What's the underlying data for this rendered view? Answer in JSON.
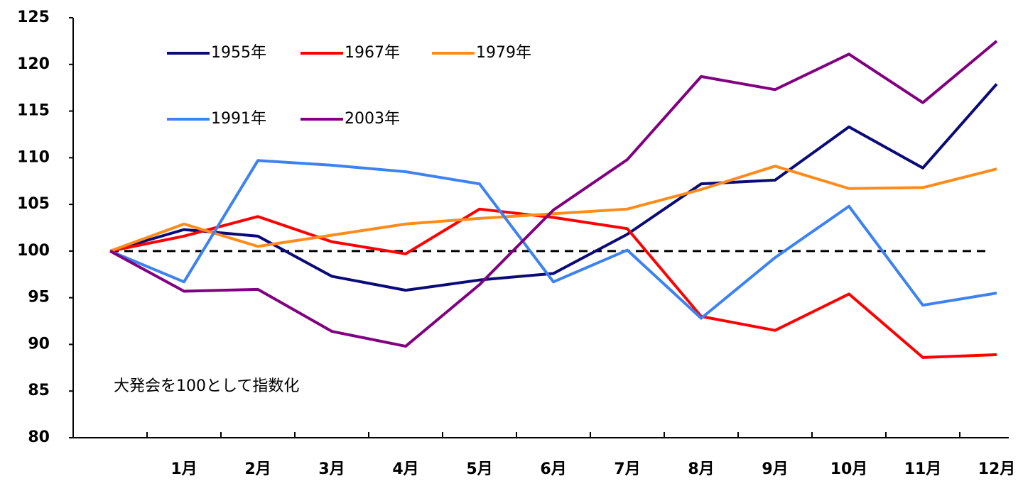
{
  "chart_data": {
    "type": "line",
    "annotation": "大発会を100として指数化",
    "categories": [
      null,
      "1月",
      "2月",
      "3月",
      "4月",
      "5月",
      "6月",
      "7月",
      "8月",
      "9月",
      "10月",
      "11月",
      "12月"
    ],
    "series": [
      {
        "name": "1955年",
        "color": "#0a0a78",
        "values": [
          100,
          102.3,
          101.6,
          97.3,
          95.8,
          96.9,
          97.6,
          101.8,
          107.2,
          107.6,
          113.3,
          108.9,
          117.9
        ]
      },
      {
        "name": "1967年",
        "color": "#ff0000",
        "values": [
          100,
          101.6,
          103.7,
          101,
          99.7,
          104.5,
          103.6,
          102.4,
          93,
          91.5,
          95.4,
          88.6,
          88.9
        ]
      },
      {
        "name": "1979年",
        "color": "#ff8c1a",
        "values": [
          100,
          102.9,
          100.5,
          101.7,
          102.9,
          103.5,
          104,
          104.5,
          106.6,
          109.1,
          106.7,
          106.8,
          108.8
        ]
      },
      {
        "name": "1991年",
        "color": "#3c82f0",
        "values": [
          100,
          96.7,
          109.7,
          109.2,
          108.5,
          107.2,
          96.7,
          100.1,
          92.8,
          99.3,
          104.8,
          94.2,
          95.5
        ]
      },
      {
        "name": "2003年",
        "color": "#800080",
        "values": [
          100,
          95.7,
          95.9,
          91.4,
          89.8,
          96.4,
          104.4,
          109.8,
          118.7,
          117.3,
          121.1,
          115.9,
          122.5
        ]
      }
    ],
    "reference_line": 100,
    "ylim": [
      80,
      125
    ],
    "yticks": [
      80,
      85,
      90,
      95,
      100,
      105,
      110,
      115,
      120,
      125
    ],
    "grid": false,
    "legend": "top-left"
  }
}
